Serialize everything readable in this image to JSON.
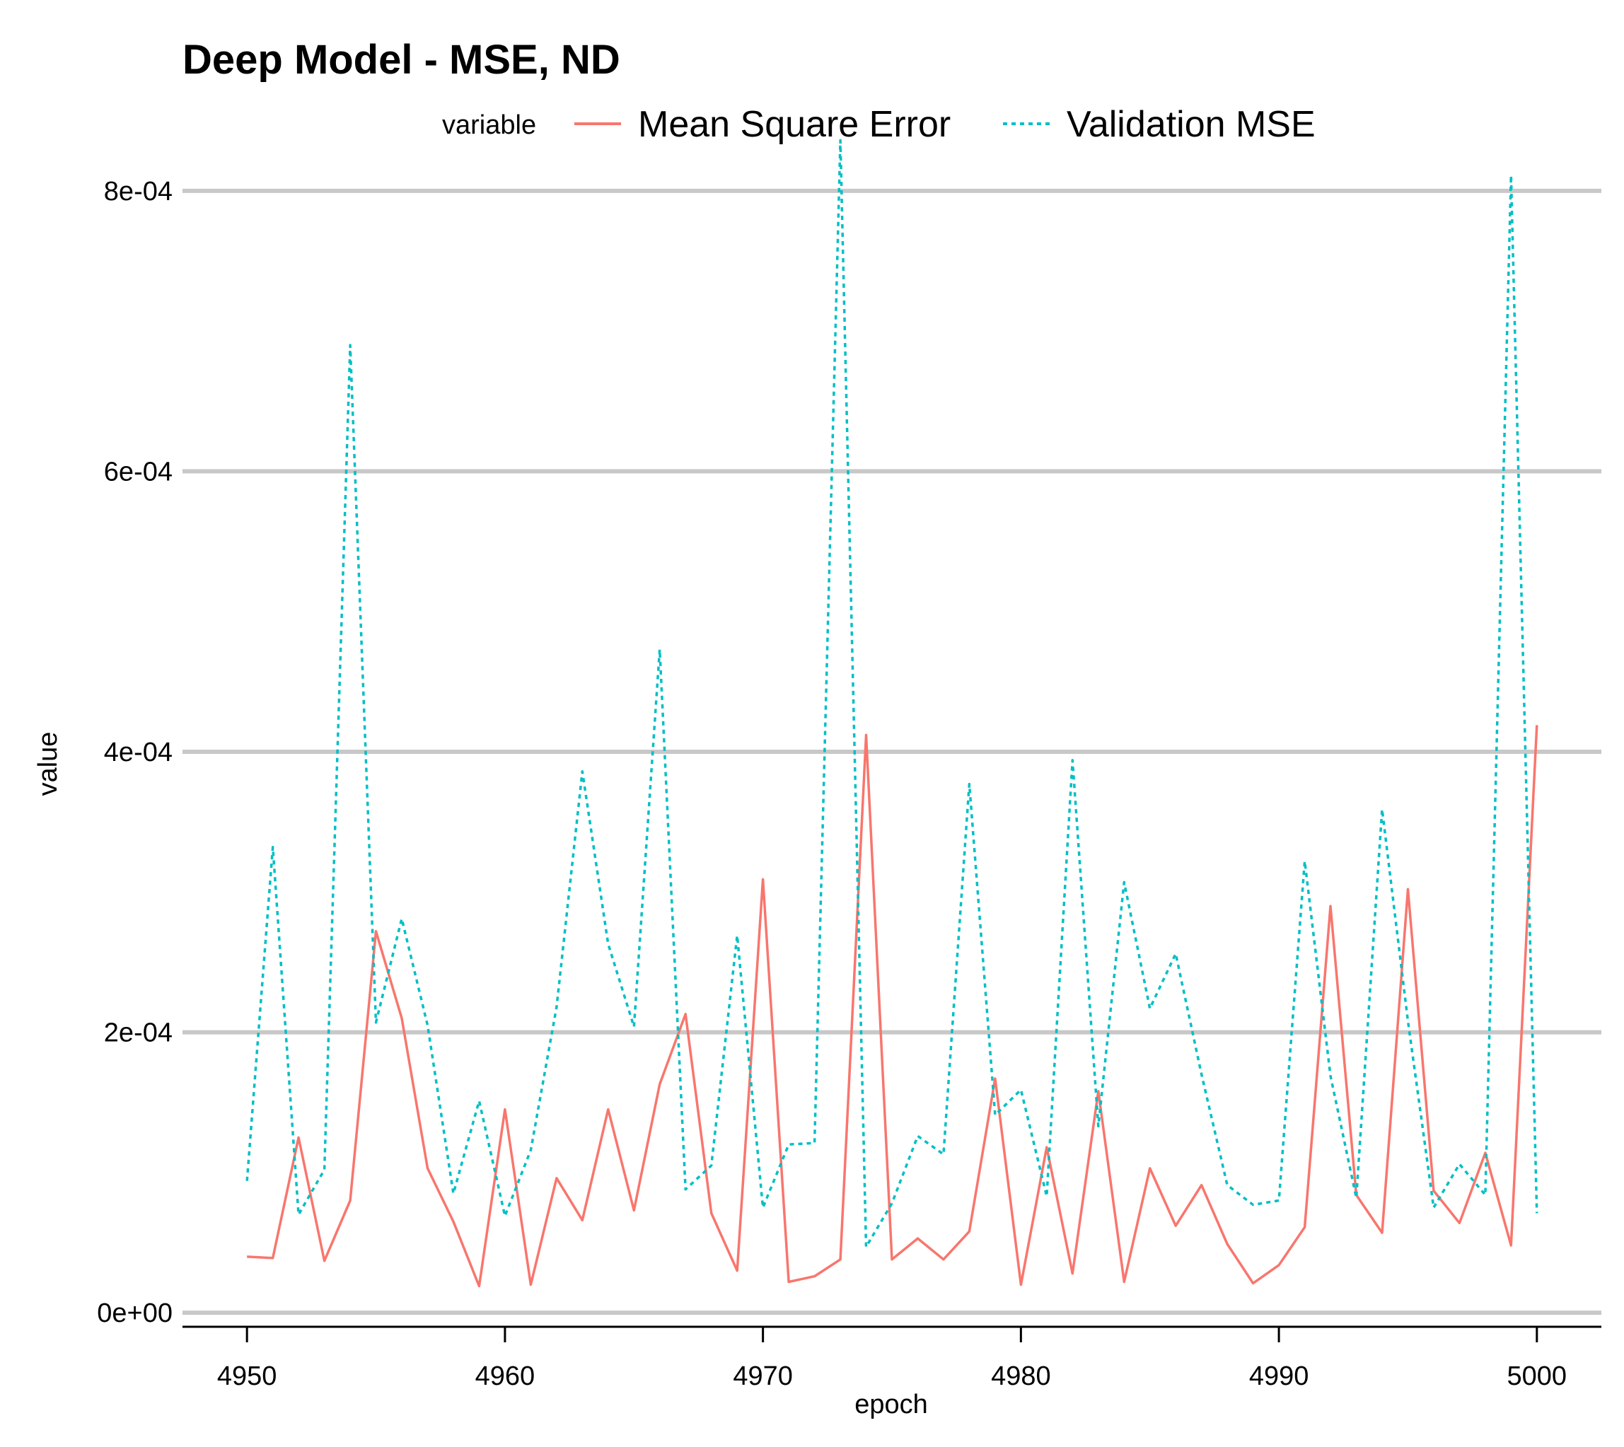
{
  "chart_data": {
    "type": "line",
    "title": "Deep Model - MSE, ND",
    "xlabel": "epoch",
    "ylabel": "value",
    "legend": {
      "title": "variable",
      "position": "top"
    },
    "xlim": [
      4947.5,
      5002.5
    ],
    "ylim": [
      -1e-05,
      0.00081
    ],
    "x_ticks": [
      4950,
      4960,
      4970,
      4980,
      4990,
      5000
    ],
    "x_tick_labels": [
      "4950",
      "4960",
      "4970",
      "4980",
      "4990",
      "5000"
    ],
    "y_ticks": [
      0,
      0.0002,
      0.0004,
      0.0006,
      0.0008
    ],
    "y_tick_labels": [
      "0e+00",
      "2e-04",
      "4e-04",
      "6e-04",
      "8e-04"
    ],
    "grid": {
      "horizontal": true,
      "vertical": false
    },
    "x": [
      4950,
      4951,
      4952,
      4953,
      4954,
      4955,
      4956,
      4957,
      4958,
      4959,
      4960,
      4961,
      4962,
      4963,
      4964,
      4965,
      4966,
      4967,
      4968,
      4969,
      4970,
      4971,
      4972,
      4973,
      4974,
      4975,
      4976,
      4977,
      4978,
      4979,
      4980,
      4981,
      4982,
      4983,
      4984,
      4985,
      4986,
      4987,
      4988,
      4989,
      4990,
      4991,
      4992,
      4993,
      4994,
      4995,
      4996,
      4997,
      4998,
      4999,
      5000
    ],
    "series": [
      {
        "name": "Mean Square Error",
        "color": "#F8766D",
        "dash": "solid",
        "values": [
          4e-05,
          3.9e-05,
          0.000125,
          3.7e-05,
          8e-05,
          0.000272,
          0.00021,
          0.000103,
          6.5e-05,
          1.9e-05,
          0.000145,
          2e-05,
          9.6e-05,
          6.6e-05,
          0.000145,
          7.3e-05,
          0.000163,
          0.000213,
          7.1e-05,
          3e-05,
          0.000309,
          2.2e-05,
          2.6e-05,
          3.8e-05,
          0.000412,
          3.8e-05,
          5.3e-05,
          3.8e-05,
          5.8e-05,
          0.000167,
          2e-05,
          0.000118,
          2.8e-05,
          0.000158,
          2.2e-05,
          0.000103,
          6.2e-05,
          9.1e-05,
          4.9e-05,
          2.1e-05,
          3.4e-05,
          6.1e-05,
          0.00029,
          8.4e-05,
          5.7e-05,
          0.000302,
          8.7e-05,
          6.4e-05,
          0.000114,
          4.8e-05,
          0.000419
        ]
      },
      {
        "name": "Validation MSE",
        "color": "#00BFC4",
        "dash": "dotted",
        "values": [
          9.4e-05,
          0.000332,
          7e-05,
          0.000102,
          0.00069,
          0.000207,
          0.000281,
          0.000205,
          8.5e-05,
          0.000151,
          6.9e-05,
          0.000116,
          0.000218,
          0.000386,
          0.000263,
          0.000204,
          0.000473,
          8.8e-05,
          0.000105,
          0.000269,
          7.5e-05,
          0.00012,
          0.000121,
          0.000836,
          4.7e-05,
          7.8e-05,
          0.000126,
          0.000113,
          0.000377,
          0.000141,
          0.000159,
          8.3e-05,
          0.000394,
          0.000133,
          0.000307,
          0.000217,
          0.000256,
          0.00017,
          9.1e-05,
          7.7e-05,
          8e-05,
          0.000322,
          0.000169,
          8.2e-05,
          0.000359,
          0.000208,
          7.5e-05,
          0.000106,
          8.4e-05,
          0.000811,
          7.1e-05
        ]
      }
    ]
  }
}
